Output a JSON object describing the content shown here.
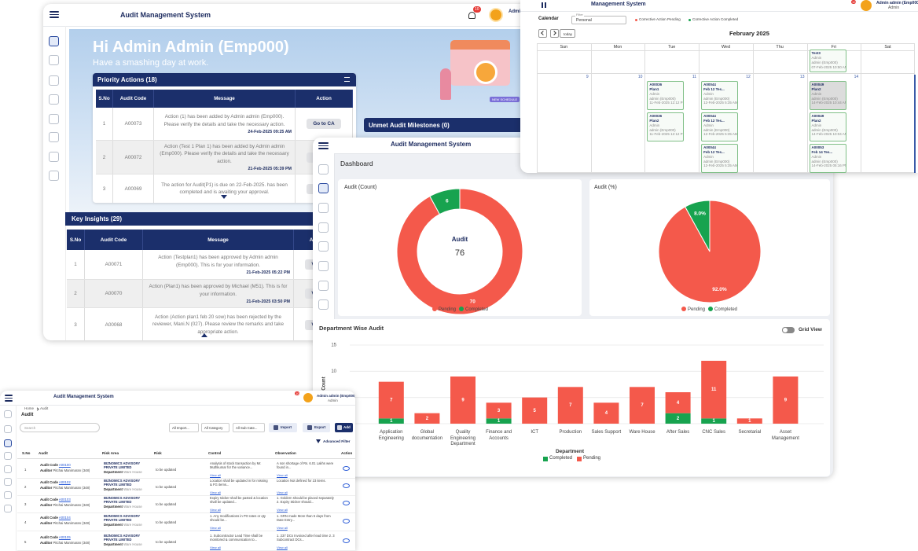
{
  "home": {
    "app_title": "Audit Management System",
    "notifications": "10",
    "user": "Admin",
    "greeting": "Hi Admin Admin (Emp000)",
    "tagline": "Have a smashing day at work.",
    "illustration_text": "NEW SCHEDULE",
    "priority_actions": {
      "title": "Priority Actions (18)",
      "columns": [
        "S.No",
        "Audit Code",
        "Message",
        "Action"
      ],
      "rows": [
        {
          "sno": 1,
          "code": "A00073",
          "message": "Action (1) has been added by Admin admin (Emp000). Please verify the details and take the necessary action.",
          "date": "24-Feb-2025 09:25 AM",
          "action": "Go to CA"
        },
        {
          "sno": 2,
          "code": "A00072",
          "message": "Action (Test 1 Plan 1) has been added by Admin admin (Emp000). Please verify the details and take the necessary action.",
          "date": "21-Feb-2025 05:39 PM",
          "action": "Go to CA"
        },
        {
          "sno": 3,
          "code": "A00069",
          "message": "The action for Audit(P1) is due on 22-Feb-2025. has been completed and is awaiting your approval.",
          "action": "Go to CA"
        }
      ]
    },
    "unmet_milestones": "Unmet Audit Milestones (0)",
    "key_insights": {
      "title": "Key Insights (29)",
      "columns": [
        "S.No",
        "Audit Code",
        "Message",
        "Action"
      ],
      "rows": [
        {
          "sno": 1,
          "code": "A00071",
          "message": "Action (Testplan1) has been approved by Admin admin (Emp000). This is for your information.",
          "date": "21-Feb-2025 05:22 PM",
          "action": "View"
        },
        {
          "sno": 2,
          "code": "A00070",
          "message": "Action (Plan1) has been approved by Michael (M51). This is for your information.",
          "date": "21-Feb-2025 03:50 PM",
          "action": "View"
        },
        {
          "sno": 3,
          "code": "A00068",
          "message": "Action (Action plan1 feb 20 sow) has been rejected by the reviewer, Mani.N (027). Please review the remarks and take appropriate action.",
          "action": "View"
        }
      ]
    }
  },
  "calendar": {
    "app_title": "Management System",
    "notifications": "10",
    "user_name": "Admin admin (Emp000)",
    "user_role": "Admin",
    "title": "Calendar",
    "filter_label": "Filter",
    "filter_value": "Personal",
    "legend": [
      "Corrective Action Pending",
      "Corrective Action Completed"
    ],
    "today": "today",
    "month": "February 2025",
    "weekdays": [
      "Sun",
      "Mon",
      "Tue",
      "Wed",
      "Thu",
      "Fri",
      "Sat"
    ],
    "dates": [
      "9",
      "10",
      "11",
      "12",
      "13",
      "14"
    ],
    "prev_week_events": [
      {
        "name": "Test3",
        "owner": "Admin",
        "user": "admin (Emp000)",
        "time": "07-Feb-2025 10:50 AM"
      }
    ],
    "tue_events": [
      {
        "code": "A00036",
        "name": "Plan1",
        "owner": "Admin",
        "user": "admin (Emp000)",
        "time": "11-Feb-2025 12:12 PM"
      },
      {
        "code": "A00036",
        "name": "Plan2",
        "owner": "Admin",
        "user": "admin (Emp000)",
        "time": "11-Feb-2025 12:12 PM"
      }
    ],
    "wed_events": [
      {
        "code": "A00044",
        "name": "Feb 12 Tes...",
        "owner": "Admin",
        "user": "admin (Emp000)",
        "time": "12-Feb-2025 5:35 AM"
      },
      {
        "code": "A00044",
        "name": "Feb 12 Tes...",
        "owner": "Admin",
        "user": "admin (Emp000)",
        "time": "12-Feb-2025 5:35 AM"
      },
      {
        "code": "A00044",
        "name": "Feb 12 Tes...",
        "owner": "Admin",
        "user": "admin (Emp000)",
        "time": "12-Feb-2025 5:35 AM"
      }
    ],
    "fri_events": [
      {
        "code": "A00049",
        "name": "Plan2",
        "owner": "Admin",
        "user": "admin (Emp000)",
        "time": "14-Feb-2025 10:44 AM"
      },
      {
        "code": "A00049",
        "name": "Plan2",
        "owner": "Admin",
        "user": "admin (Emp000)",
        "time": "14-Feb-2025 10:04 AM"
      },
      {
        "code": "A00053",
        "name": "Feb 14 Tes...",
        "owner": "Admin",
        "user": "admin (Emp000)",
        "time": "14-Feb-2025 05:16 PM"
      }
    ]
  },
  "dashboard": {
    "app_title": "Audit Management System",
    "heading": "Dashboard",
    "audit_count": {
      "type": "donut",
      "title": "Audit (Count)",
      "center_label": "Audit",
      "total": 76,
      "categories": [
        "Pending",
        "Completed"
      ],
      "values": [
        70,
        6
      ],
      "colors": [
        "#f4594b",
        "#17a34f"
      ]
    },
    "audit_percent": {
      "type": "pie",
      "title": "Audit (%)",
      "categories": [
        "Pending",
        "Completed"
      ],
      "values": [
        92,
        8
      ],
      "value_labels": [
        "92.0%",
        "8.0%"
      ],
      "colors": [
        "#f4594b",
        "#17a34f"
      ]
    },
    "department": {
      "type": "stacked-bar",
      "title": "Department Wise Audit",
      "toggle": "Grid View",
      "y_label": "Count",
      "x_label": "Department",
      "categories": [
        "Application Engineering",
        "Global documentation",
        "Quality Engineering Department",
        "Finance and Accounts",
        "ICT",
        "Production",
        "Sales Support",
        "Ware House",
        "After Sales",
        "CNC Sales",
        "Secretarial",
        "Asset Management"
      ],
      "series": [
        {
          "name": "Completed",
          "color": "#17a34f",
          "values": [
            1,
            0,
            0,
            1,
            0,
            0,
            0,
            0,
            2,
            1,
            0,
            0
          ]
        },
        {
          "name": "Pending",
          "color": "#f4594b",
          "values": [
            7,
            2,
            9,
            3,
            5,
            7,
            4,
            7,
            4,
            11,
            1,
            9
          ]
        }
      ],
      "ylim": [
        0,
        15
      ],
      "yticks": [
        0,
        5,
        10,
        15
      ],
      "grid": true
    }
  },
  "audit_list": {
    "app_title": "Audit Management System",
    "notifications": "10",
    "user_name": "Admin admin (Emp000)",
    "user_role": "Admin",
    "breadcrumb": [
      "Home",
      "Audit"
    ],
    "heading": "Audit",
    "search": "Search",
    "filters": [
      "All Import...",
      "All Category",
      "All Sub Cate..."
    ],
    "buttons": [
      "Import",
      "Export",
      "Add"
    ],
    "advanced_filter": "Advanced Filter",
    "columns": [
      "S.No",
      "Audit",
      "Risk Area",
      "Risk",
      "Control",
      "Observation",
      "Action"
    ],
    "labels": {
      "code": "Audit Code",
      "auditor": "Auditor",
      "department": "Department",
      "more": "View all"
    },
    "rows": [
      {
        "sno": 1,
        "code": "A00100",
        "auditor": "Pitchai Manimaran (348)",
        "risk_area": "BIZNOMICS ADVISORY PRIVATE LIMITED",
        "department": "Ware House",
        "risk": "to be updated",
        "control": "Analysis of stock transaction by Mr. Muthkumar for the variance...",
        "observation": "A non shortage of Rs. 6.01 Lakhs were found in..."
      },
      {
        "sno": 2,
        "code": "A00102",
        "auditor": "Pitchai Manimaran (348)",
        "risk_area": "BIZNOMICS ADVISORY PRIVATE LIMITED",
        "department": "Ware House",
        "risk": "to be updated",
        "control": "Location shall be updated in for missing & FG items...",
        "observation": "Location Not defined for 23 items."
      },
      {
        "sno": 3,
        "code": "A00103",
        "auditor": "Pitchai Manimaran (348)",
        "risk_area": "BIZNOMICS ADVISORY PRIVATE LIMITED",
        "department": "Ware House",
        "risk": "to be updated",
        "control": "Expiry sticker shall be pasted & location shall be updated...",
        "observation": "1. Goldern should be placed separately 2. Expiry Sticker should..."
      },
      {
        "sno": 4,
        "code": "A00104",
        "auditor": "Pitchai Manimaran (348)",
        "risk_area": "BIZNOMICS ADVISORY PRIVATE LIMITED",
        "department": "Ware House",
        "risk": "to be updated",
        "control": "1. Any modifications in PO rates or qty should be...",
        "observation": "1. GRN made More than 5 days from Date Entry..."
      },
      {
        "sno": 5,
        "code": "A00105",
        "auditor": "Pitchai Manimaran (348)",
        "risk_area": "BIZNOMICS ADVISORY PRIVATE LIMITED",
        "department": "Ware House",
        "risk": "to be updated",
        "control": "1. Subcontractor Lead Time shall be monitored & communication to...",
        "observation": "1. 237 DCs Invoiced after lead time 2. 3 Subcontract DCs..."
      }
    ]
  }
}
